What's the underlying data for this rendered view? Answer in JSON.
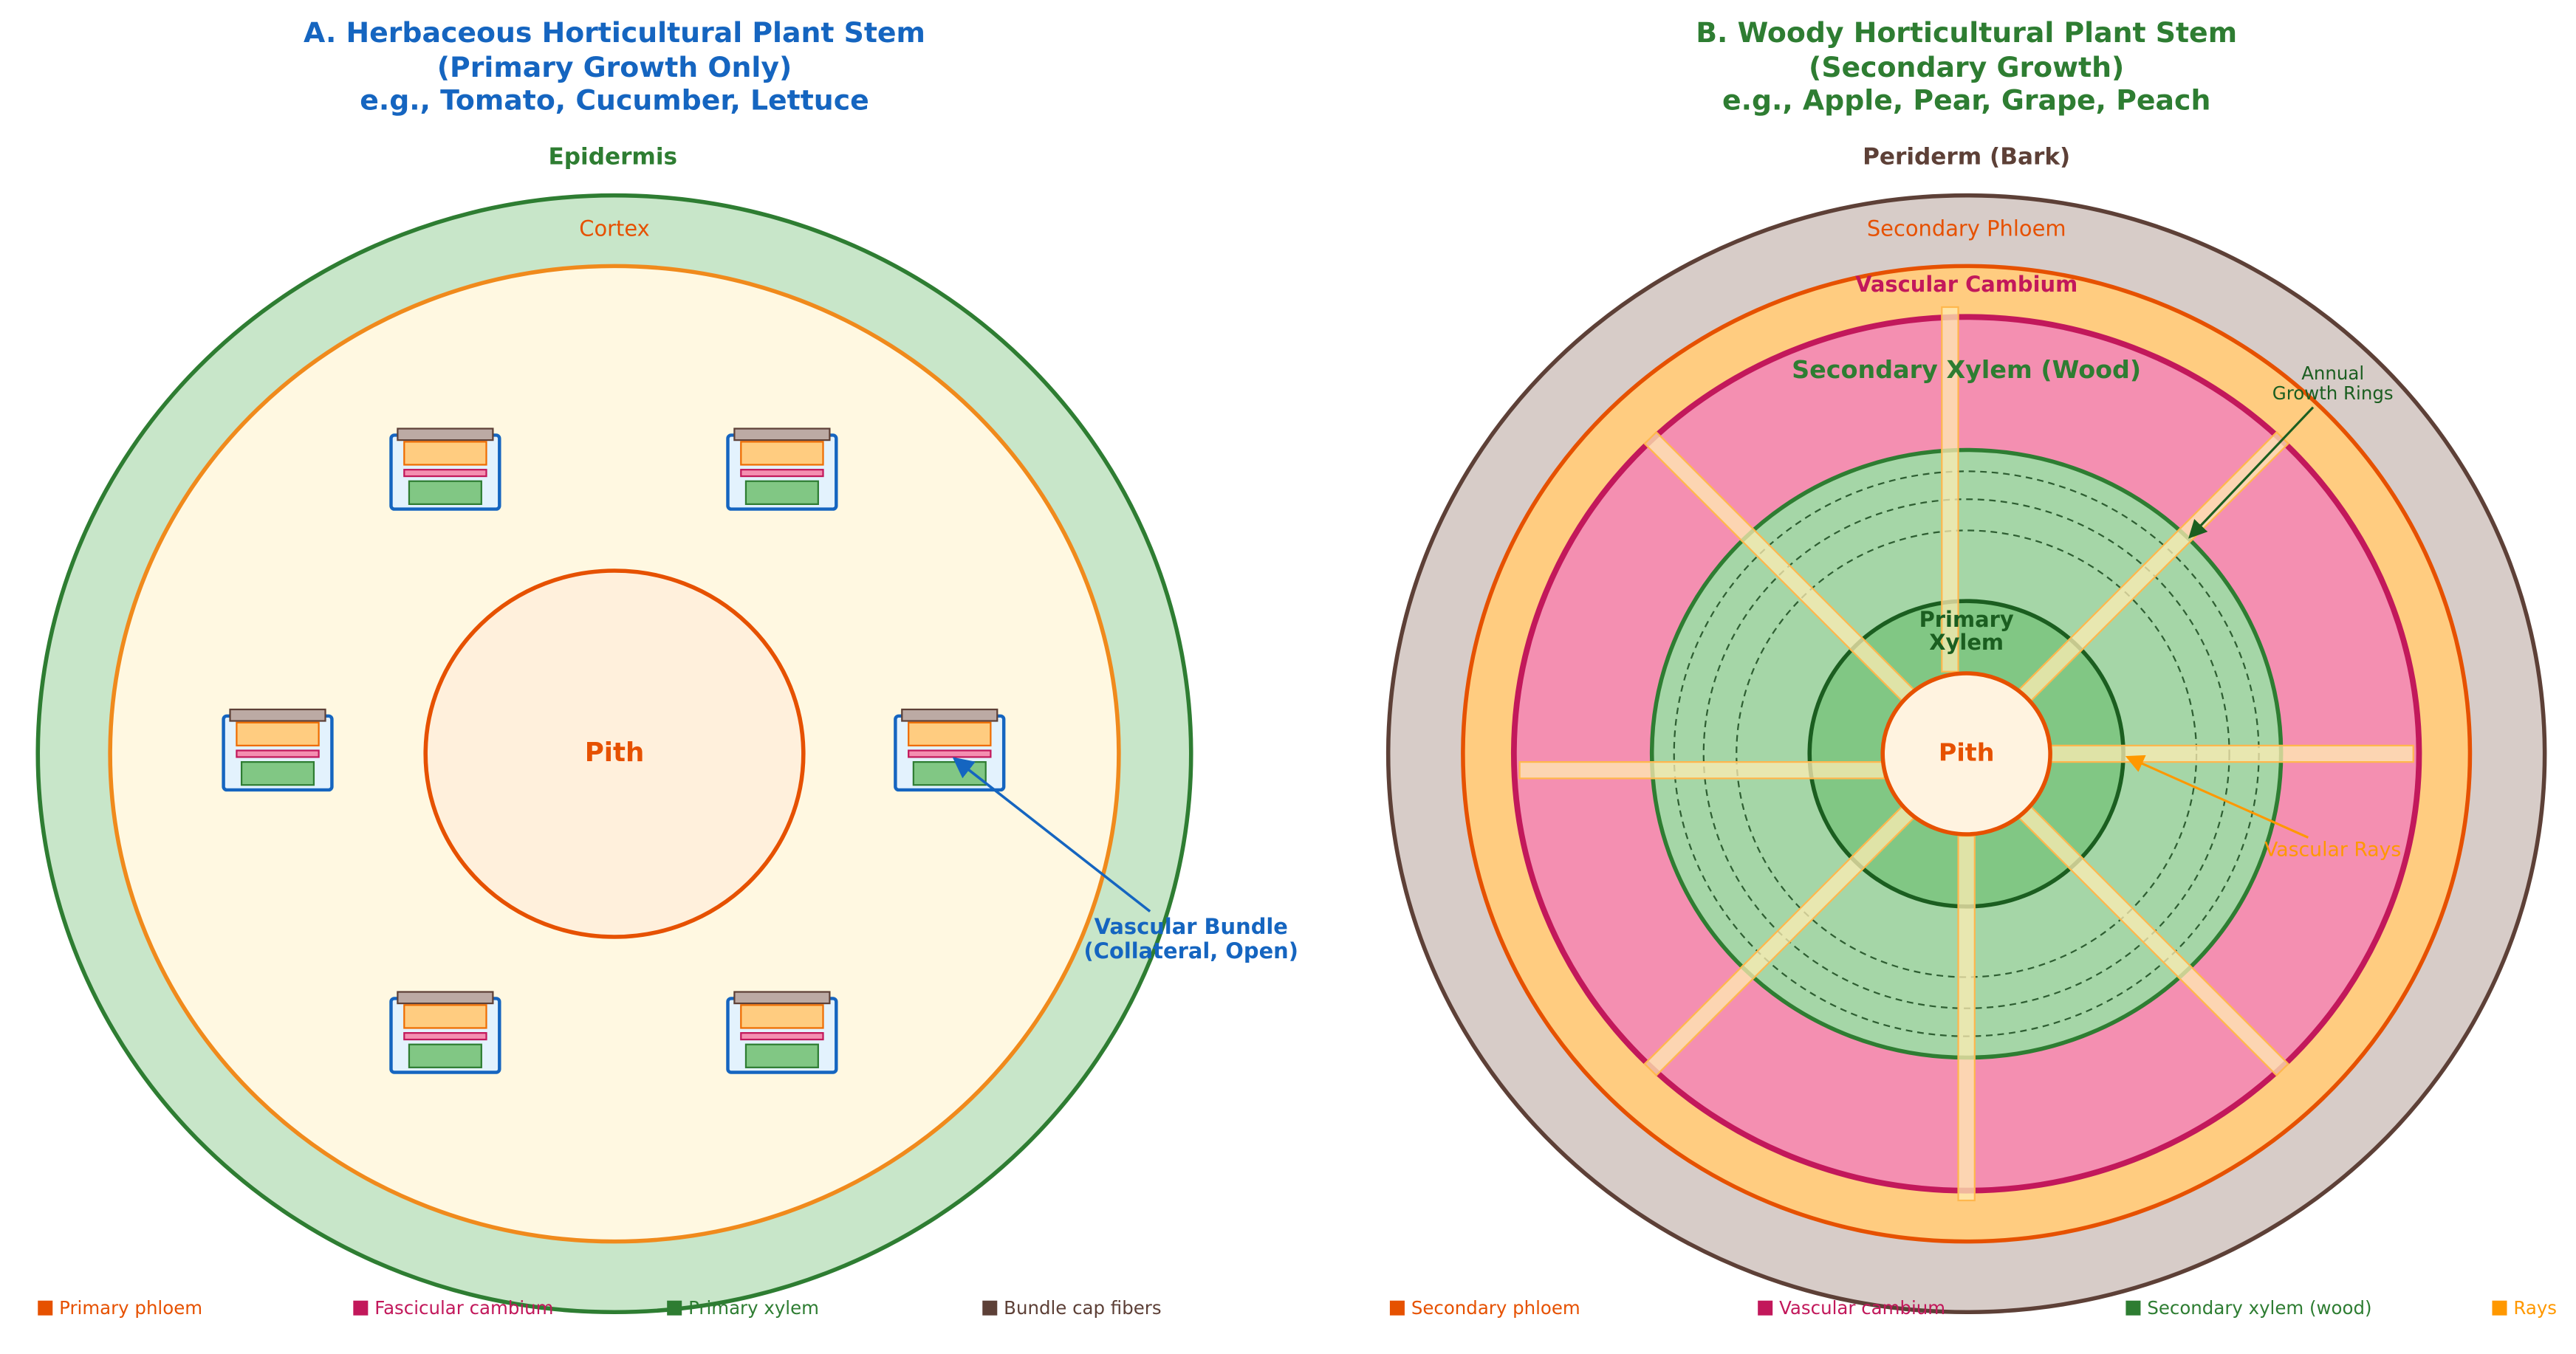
{
  "panel_a": {
    "title": [
      "A. Herbaceous Horticultural Plant Stem",
      "(Primary Growth Only)",
      "e.g., Tomato, Cucumber, Lettuce"
    ],
    "epidermis": "Epidermis",
    "cortex": "Cortex",
    "pith": "Pith",
    "callout": [
      "Vascular Bundle",
      "(Collateral, Open)"
    ],
    "legend": [
      "Primary phloem",
      "Fascicular cambium",
      "Primary xylem",
      "Bundle cap fibers"
    ]
  },
  "panel_b": {
    "title": [
      "B. Woody Horticultural Plant Stem",
      "(Secondary Growth)",
      "e.g., Apple, Pear, Grape, Peach"
    ],
    "periderm": "Periderm (Bark)",
    "secondary_phloem": "Secondary Phloem",
    "vascular_cambium": "Vascular Cambium",
    "secondary_xylem": "Secondary Xylem (Wood)",
    "primary_xylem": [
      "Primary",
      "Xylem"
    ],
    "pith": "Pith",
    "growth_rings": [
      "Annual",
      "Growth Rings"
    ],
    "rays": "Vascular Rays",
    "legend": [
      "Secondary phloem",
      "Vascular cambium",
      "Secondary xylem (wood)",
      "Rays"
    ]
  }
}
